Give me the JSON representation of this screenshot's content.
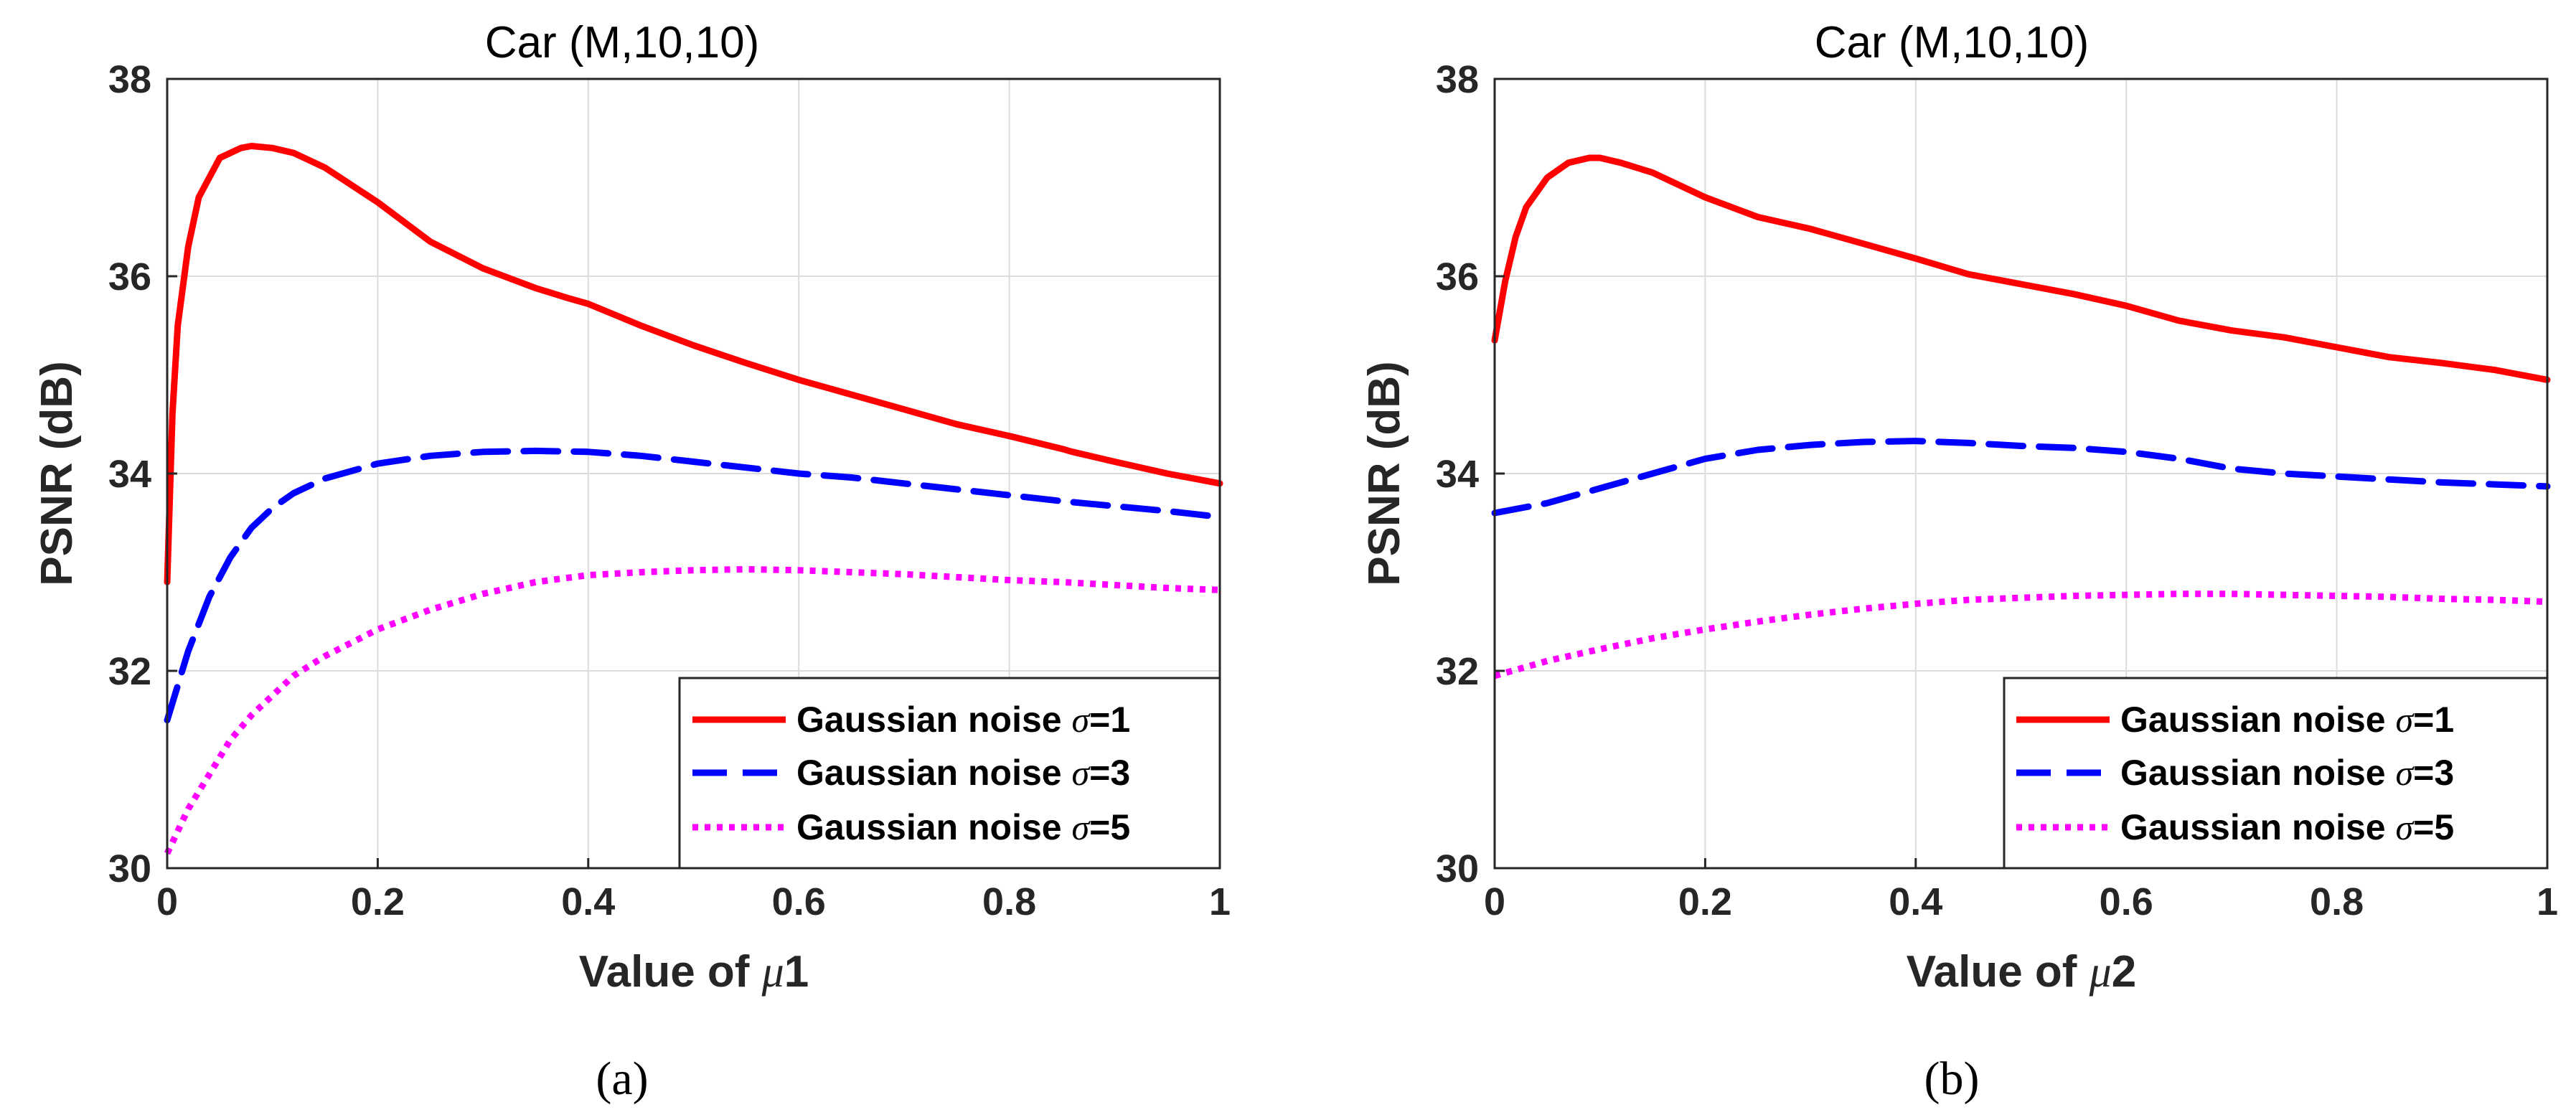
{
  "figure": {
    "captions": [
      "(a)",
      "(b)"
    ]
  },
  "chart_data": [
    {
      "type": "line",
      "title": "Car (M,10,10)",
      "xlabel_prefix": "Value of ",
      "xlabel_symbol": "μ",
      "xlabel_suffix": "1",
      "ylabel": "PSNR (dB)",
      "xlim": [
        0,
        1
      ],
      "ylim": [
        30,
        38
      ],
      "xticks": [
        "0",
        "0.2",
        "0.4",
        "0.6",
        "0.8",
        "1"
      ],
      "yticks": [
        "30",
        "32",
        "34",
        "36",
        "38"
      ],
      "grid": true,
      "legend_position": "bottom-right",
      "series": [
        {
          "name": "Gaussian noise σ=1",
          "name_prefix": "Gaussian noise ",
          "name_symbol": "σ",
          "name_suffix": "=1",
          "color": "#ff0000",
          "style": "solid",
          "x": [
            0,
            0.005,
            0.01,
            0.02,
            0.03,
            0.05,
            0.07,
            0.08,
            0.1,
            0.12,
            0.15,
            0.2,
            0.25,
            0.3,
            0.35,
            0.38,
            0.4,
            0.45,
            0.5,
            0.55,
            0.6,
            0.65,
            0.7,
            0.75,
            0.8,
            0.85,
            0.86,
            0.9,
            0.95,
            1.0
          ],
          "y": [
            32.9,
            34.6,
            35.5,
            36.3,
            36.8,
            37.2,
            37.3,
            37.32,
            37.3,
            37.25,
            37.1,
            36.75,
            36.35,
            36.08,
            35.88,
            35.78,
            35.72,
            35.5,
            35.3,
            35.12,
            34.95,
            34.8,
            34.65,
            34.5,
            34.38,
            34.25,
            34.22,
            34.12,
            34.0,
            33.9
          ]
        },
        {
          "name": "Gaussian noise σ=3",
          "name_prefix": "Gaussian noise ",
          "name_symbol": "σ",
          "name_suffix": "=3",
          "color": "#0000ff",
          "style": "dashed",
          "x": [
            0,
            0.02,
            0.04,
            0.06,
            0.08,
            0.1,
            0.12,
            0.15,
            0.2,
            0.25,
            0.3,
            0.35,
            0.4,
            0.45,
            0.5,
            0.55,
            0.6,
            0.65,
            0.7,
            0.75,
            0.8,
            0.85,
            0.9,
            0.95,
            1.0
          ],
          "y": [
            31.5,
            32.2,
            32.75,
            33.15,
            33.45,
            33.65,
            33.8,
            33.95,
            34.1,
            34.18,
            34.22,
            34.23,
            34.22,
            34.18,
            34.12,
            34.06,
            34.0,
            33.96,
            33.9,
            33.84,
            33.78,
            33.72,
            33.67,
            33.62,
            33.56
          ]
        },
        {
          "name": "Gaussian noise σ=5",
          "name_prefix": "Gaussian noise ",
          "name_symbol": "σ",
          "name_suffix": "=5",
          "color": "#ff00ff",
          "style": "dotted",
          "x": [
            0,
            0.02,
            0.04,
            0.06,
            0.08,
            0.1,
            0.12,
            0.15,
            0.2,
            0.25,
            0.3,
            0.35,
            0.4,
            0.45,
            0.5,
            0.55,
            0.6,
            0.65,
            0.7,
            0.75,
            0.8,
            0.85,
            0.9,
            0.95,
            1.0
          ],
          "y": [
            30.15,
            30.6,
            30.95,
            31.3,
            31.55,
            31.75,
            31.95,
            32.15,
            32.42,
            32.62,
            32.78,
            32.9,
            32.97,
            33.0,
            33.02,
            33.03,
            33.02,
            33.0,
            32.98,
            32.95,
            32.92,
            32.9,
            32.87,
            32.84,
            32.82
          ]
        }
      ]
    },
    {
      "type": "line",
      "title": "Car (M,10,10)",
      "xlabel_prefix": "Value of ",
      "xlabel_symbol": "μ",
      "xlabel_suffix": "2",
      "ylabel": "PSNR (dB)",
      "xlim": [
        0,
        1
      ],
      "ylim": [
        30,
        38
      ],
      "xticks": [
        "0",
        "0.2",
        "0.4",
        "0.6",
        "0.8",
        "1"
      ],
      "yticks": [
        "30",
        "32",
        "34",
        "36",
        "38"
      ],
      "grid": true,
      "legend_position": "bottom-right",
      "series": [
        {
          "name": "Gaussian noise σ=1",
          "name_prefix": "Gaussian noise ",
          "name_symbol": "σ",
          "name_suffix": "=1",
          "color": "#ff0000",
          "style": "solid",
          "x": [
            0,
            0.01,
            0.02,
            0.03,
            0.05,
            0.07,
            0.09,
            0.1,
            0.12,
            0.15,
            0.2,
            0.25,
            0.3,
            0.35,
            0.4,
            0.45,
            0.5,
            0.55,
            0.6,
            0.65,
            0.7,
            0.75,
            0.8,
            0.85,
            0.9,
            0.95,
            1.0
          ],
          "y": [
            35.35,
            35.95,
            36.4,
            36.7,
            37.0,
            37.15,
            37.2,
            37.2,
            37.15,
            37.05,
            36.8,
            36.6,
            36.48,
            36.33,
            36.18,
            36.02,
            35.92,
            35.82,
            35.7,
            35.55,
            35.45,
            35.38,
            35.28,
            35.18,
            35.12,
            35.05,
            34.95
          ]
        },
        {
          "name": "Gaussian noise σ=3",
          "name_prefix": "Gaussian noise ",
          "name_symbol": "σ",
          "name_suffix": "=3",
          "color": "#0000ff",
          "style": "dashed",
          "x": [
            0,
            0.05,
            0.1,
            0.15,
            0.2,
            0.25,
            0.3,
            0.35,
            0.4,
            0.45,
            0.5,
            0.55,
            0.6,
            0.65,
            0.7,
            0.75,
            0.8,
            0.85,
            0.9,
            0.95,
            1.0
          ],
          "y": [
            33.6,
            33.7,
            33.85,
            34.0,
            34.15,
            34.24,
            34.29,
            34.32,
            34.33,
            34.31,
            34.28,
            34.26,
            34.22,
            34.15,
            34.05,
            34.0,
            33.97,
            33.94,
            33.91,
            33.89,
            33.87
          ]
        },
        {
          "name": "Gaussian noise σ=5",
          "name_prefix": "Gaussian noise ",
          "name_symbol": "σ",
          "name_suffix": "=5",
          "color": "#ff00ff",
          "style": "dotted",
          "x": [
            0,
            0.05,
            0.1,
            0.15,
            0.2,
            0.25,
            0.3,
            0.35,
            0.4,
            0.45,
            0.5,
            0.55,
            0.6,
            0.65,
            0.7,
            0.75,
            0.8,
            0.85,
            0.9,
            0.95,
            1.0
          ],
          "y": [
            31.95,
            32.1,
            32.22,
            32.33,
            32.42,
            32.5,
            32.57,
            32.63,
            32.68,
            32.72,
            32.74,
            32.76,
            32.77,
            32.78,
            32.78,
            32.77,
            32.76,
            32.75,
            32.73,
            32.72,
            32.7
          ]
        }
      ]
    }
  ]
}
